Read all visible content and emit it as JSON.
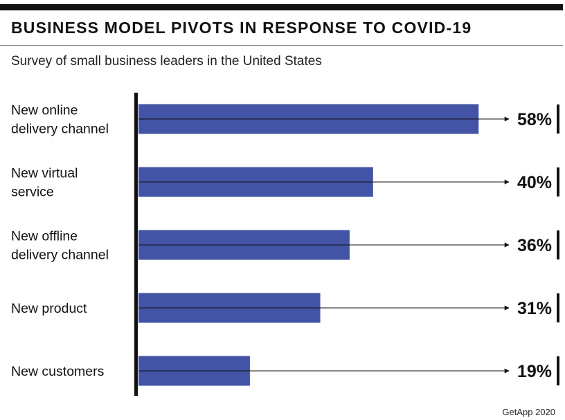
{
  "chart_data": {
    "type": "bar",
    "orientation": "horizontal",
    "title": "BUSINESS MODEL PIVOTS IN RESPONSE TO COVID-19",
    "subtitle": "Survey of small business leaders in the United States",
    "categories": [
      [
        "New online",
        "delivery channel"
      ],
      [
        "New virtual",
        "service"
      ],
      [
        "New offline",
        "delivery channel"
      ],
      [
        "New product"
      ],
      [
        "New customers"
      ]
    ],
    "values": [
      58,
      40,
      36,
      31,
      19
    ],
    "value_labels": [
      "58%",
      "40%",
      "36%",
      "31%",
      "19%"
    ],
    "unit": "%",
    "source": "GetApp 2020",
    "bar_color": "#4353a5"
  }
}
